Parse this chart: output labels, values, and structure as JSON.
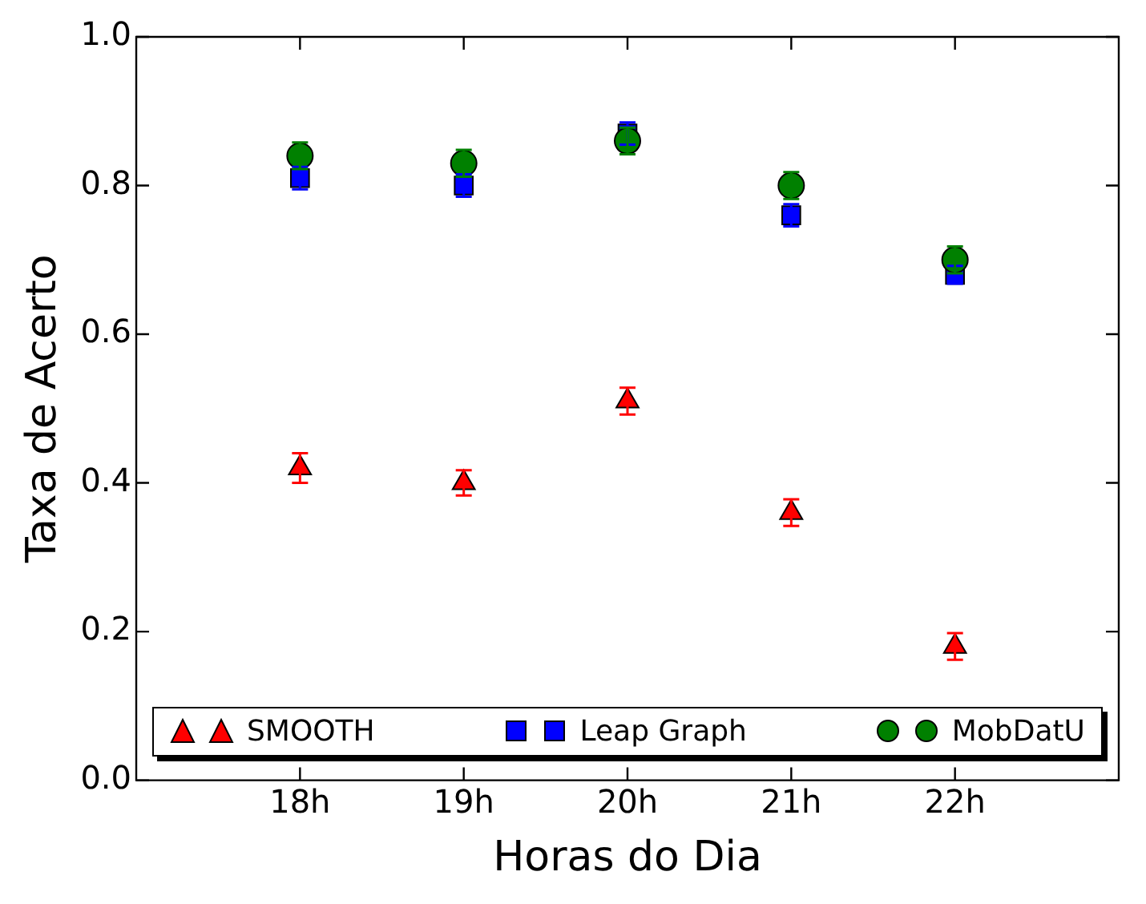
{
  "chart_data": {
    "type": "scatter",
    "xlabel": "Horas do Dia",
    "ylabel": "Taxa de Acerto",
    "x": [
      18,
      19,
      20,
      21,
      22
    ],
    "xlim": [
      17,
      23
    ],
    "xticks": [
      {
        "value": 18,
        "label": "18h"
      },
      {
        "value": 19,
        "label": "19h"
      },
      {
        "value": 20,
        "label": "20h"
      },
      {
        "value": 21,
        "label": "21h"
      },
      {
        "value": 22,
        "label": "22h"
      }
    ],
    "ylim": [
      0,
      1
    ],
    "yticks": [
      {
        "value": 0,
        "label": "0.0"
      },
      {
        "value": 0.2,
        "label": "0.2"
      },
      {
        "value": 0.4,
        "label": "0.4"
      },
      {
        "value": 0.6,
        "label": "0.6"
      },
      {
        "value": 0.8,
        "label": "0.8"
      },
      {
        "value": 1,
        "label": "1.0"
      }
    ],
    "grid": false,
    "legend": "bottom",
    "series": [
      {
        "name": "SMOOTH",
        "color": "#ff0000",
        "marker": "triangle",
        "values": [
          0.42,
          0.4,
          0.51,
          0.36,
          0.18
        ],
        "errors": [
          0.02,
          0.017,
          0.018,
          0.018,
          0.018
        ]
      },
      {
        "name": "Leap Graph",
        "color": "#0000ff",
        "marker": "square",
        "values": [
          0.81,
          0.8,
          0.87,
          0.76,
          0.68
        ],
        "errors": [
          0.015,
          0.015,
          0.015,
          0.015,
          0.012
        ]
      },
      {
        "name": "MobDatU",
        "color": "#008000",
        "marker": "circle",
        "values": [
          0.84,
          0.83,
          0.86,
          0.8,
          0.7
        ],
        "errors": [
          0.018,
          0.018,
          0.018,
          0.018,
          0.018
        ]
      }
    ]
  }
}
